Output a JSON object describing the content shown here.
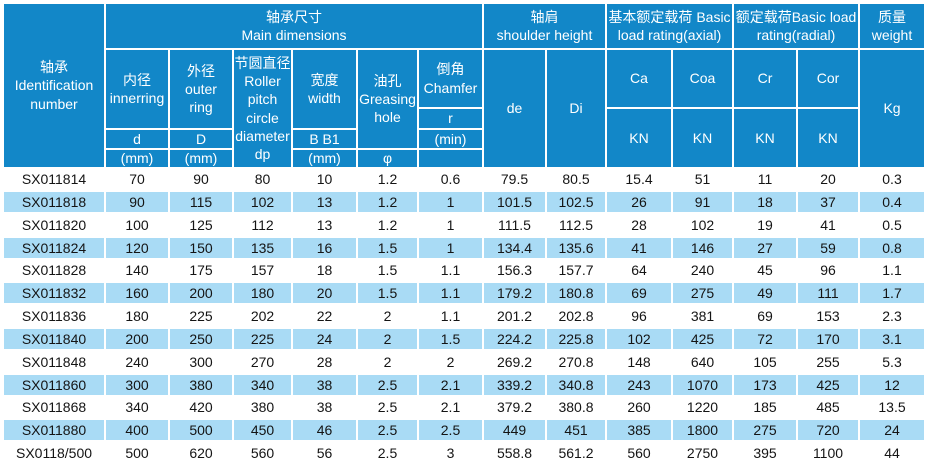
{
  "header": {
    "id_col": "轴承\nIdentification\nnumber",
    "group_dimensions": "轴承尺寸\nMain dimensions",
    "group_shoulder": "轴肩\nshoulder height",
    "group_axial": "基本额定载荷 Basic\nload rating(axial)",
    "group_radial": "额定载荷Basic load\nrating(radial)",
    "group_weight": "质量\nweight",
    "inner": "内径\ninnerring",
    "outer": "外径\nouter\nring",
    "pitch": "节圆直径\nRoller\npitch\ncircle\ndiameter\ndp",
    "width": "宽度\nwidth",
    "grease": "油孔\nGreasing\nhole",
    "chamfer": "倒角\nChamfer",
    "d": "d",
    "D": "D",
    "bb1": "B  B1",
    "r": "r",
    "mm": "(mm)",
    "phi": "φ",
    "min": "(min)",
    "de": "de",
    "di": "Di",
    "ca": "Ca",
    "coa": "Coa",
    "cr": "Cr",
    "cor": "Cor",
    "kn": "KN",
    "kg": "Kg"
  },
  "colors": {
    "header_blue": "#1287c8",
    "stripe_blue": "#a9dbf5",
    "grid_line": "#ffffff",
    "data_text": "#141414"
  },
  "columns": [
    "identification-number",
    "inner-diameter-d",
    "outer-diameter-D",
    "roller-pitch-diameter-dp",
    "width-B-B1",
    "greasing-hole-phi",
    "chamfer-r-min",
    "shoulder-de",
    "shoulder-Di",
    "axial-Ca-KN",
    "axial-Coa-KN",
    "radial-Cr-KN",
    "radial-Cor-KN",
    "weight-kg"
  ],
  "rows": [
    [
      "SX011814",
      "70",
      "90",
      "80",
      "10",
      "1.2",
      "0.6",
      "79.5",
      "80.5",
      "15.4",
      "51",
      "11",
      "20",
      "0.3"
    ],
    [
      "SX011818",
      "90",
      "115",
      "102",
      "13",
      "1.2",
      "1",
      "101.5",
      "102.5",
      "26",
      "91",
      "18",
      "37",
      "0.4"
    ],
    [
      "SX011820",
      "100",
      "125",
      "112",
      "13",
      "1.2",
      "1",
      "111.5",
      "112.5",
      "28",
      "102",
      "19",
      "41",
      "0.5"
    ],
    [
      "SX011824",
      "120",
      "150",
      "135",
      "16",
      "1.5",
      "1",
      "134.4",
      "135.6",
      "41",
      "146",
      "27",
      "59",
      "0.8"
    ],
    [
      "SX011828",
      "140",
      "175",
      "157",
      "18",
      "1.5",
      "1.1",
      "156.3",
      "157.7",
      "64",
      "240",
      "45",
      "96",
      "1.1"
    ],
    [
      "SX011832",
      "160",
      "200",
      "180",
      "20",
      "1.5",
      "1.1",
      "179.2",
      "180.8",
      "69",
      "275",
      "49",
      "111",
      "1.7"
    ],
    [
      "SX011836",
      "180",
      "225",
      "202",
      "22",
      "2",
      "1.1",
      "201.2",
      "202.8",
      "96",
      "381",
      "69",
      "153",
      "2.3"
    ],
    [
      "SX011840",
      "200",
      "250",
      "225",
      "24",
      "2",
      "1.5",
      "224.2",
      "225.8",
      "102",
      "425",
      "72",
      "170",
      "3.1"
    ],
    [
      "SX011848",
      "240",
      "300",
      "270",
      "28",
      "2",
      "2",
      "269.2",
      "270.8",
      "148",
      "640",
      "105",
      "255",
      "5.3"
    ],
    [
      "SX011860",
      "300",
      "380",
      "340",
      "38",
      "2.5",
      "2.1",
      "339.2",
      "340.8",
      "243",
      "1070",
      "173",
      "425",
      "12"
    ],
    [
      "SX011868",
      "340",
      "420",
      "380",
      "38",
      "2.5",
      "2.1",
      "379.2",
      "380.8",
      "260",
      "1220",
      "185",
      "485",
      "13.5"
    ],
    [
      "SX011880",
      "400",
      "500",
      "450",
      "46",
      "2.5",
      "2.5",
      "449",
      "451",
      "385",
      "1800",
      "275",
      "720",
      "24"
    ],
    [
      "SX0118/500",
      "500",
      "620",
      "560",
      "56",
      "2.5",
      "3",
      "558.8",
      "561.2",
      "560",
      "2750",
      "395",
      "1100",
      "44"
    ]
  ]
}
